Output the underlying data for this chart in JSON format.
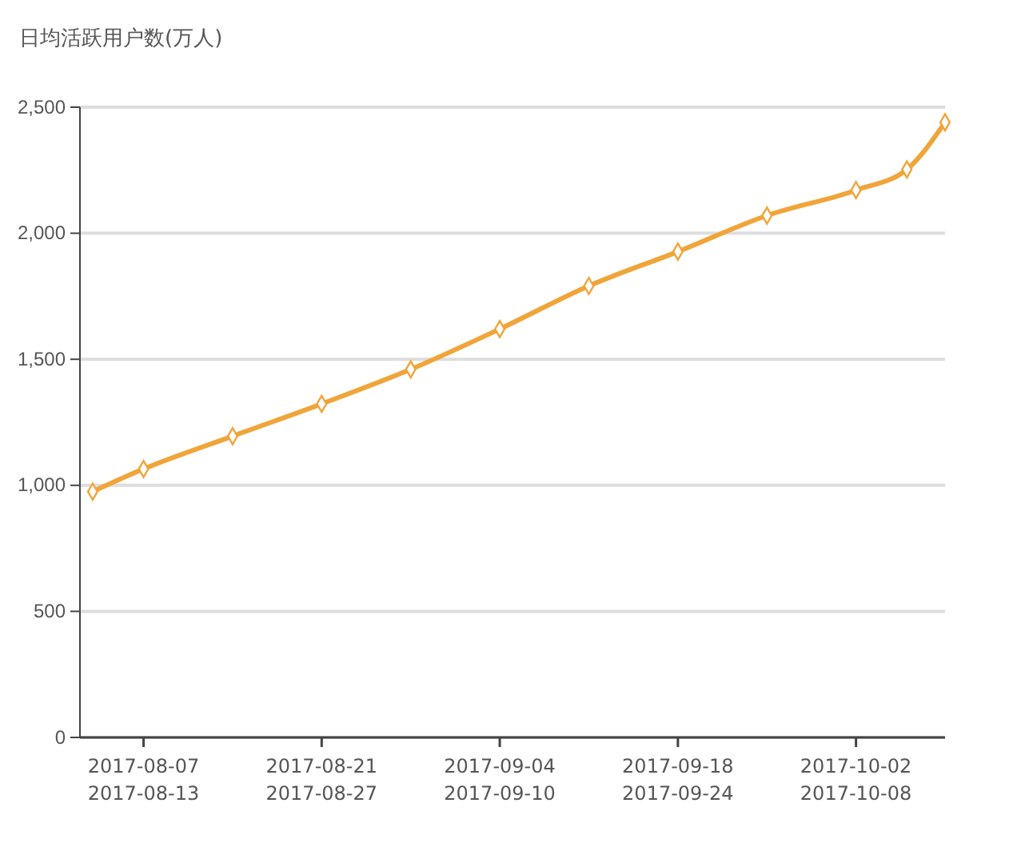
{
  "chart_data": {
    "type": "line",
    "ylabel": "日均活跃用户数(万人)",
    "x": [
      "2017-08-03",
      "2017-08-07",
      "2017-08-14",
      "2017-08-21",
      "2017-08-28",
      "2017-09-04",
      "2017-09-11",
      "2017-09-18",
      "2017-09-25",
      "2017-10-02",
      "2017-10-06",
      "2017-10-09"
    ],
    "series": [
      {
        "color": "#f0a53a",
        "values": [
          975,
          1065,
          1195,
          1323,
          1460,
          1620,
          1791,
          1927,
          2070,
          2171,
          2253,
          2440
        ]
      }
    ],
    "xlim": [
      "2017-08-02",
      "2017-10-09"
    ],
    "xticks": [
      {
        "value": "2017-08-07",
        "label": "2017-08-07\n2017-08-13"
      },
      {
        "value": "2017-08-21",
        "label": "2017-08-21\n2017-08-27"
      },
      {
        "value": "2017-09-04",
        "label": "2017-09-04\n2017-09-10"
      },
      {
        "value": "2017-09-18",
        "label": "2017-09-18\n2017-09-24"
      },
      {
        "value": "2017-10-02",
        "label": "2017-10-02\n2017-10-08"
      }
    ],
    "ylim": [
      0,
      2500
    ],
    "yticks": [
      {
        "value": 0,
        "label": "0"
      },
      {
        "value": 500,
        "label": "500"
      },
      {
        "value": 1000,
        "label": "1,000"
      },
      {
        "value": 1500,
        "label": "1,500"
      },
      {
        "value": 2000,
        "label": "2,000"
      },
      {
        "value": 2500,
        "label": "2,500"
      }
    ],
    "grid": "y",
    "marker": "diamond",
    "line_style": "solid"
  }
}
